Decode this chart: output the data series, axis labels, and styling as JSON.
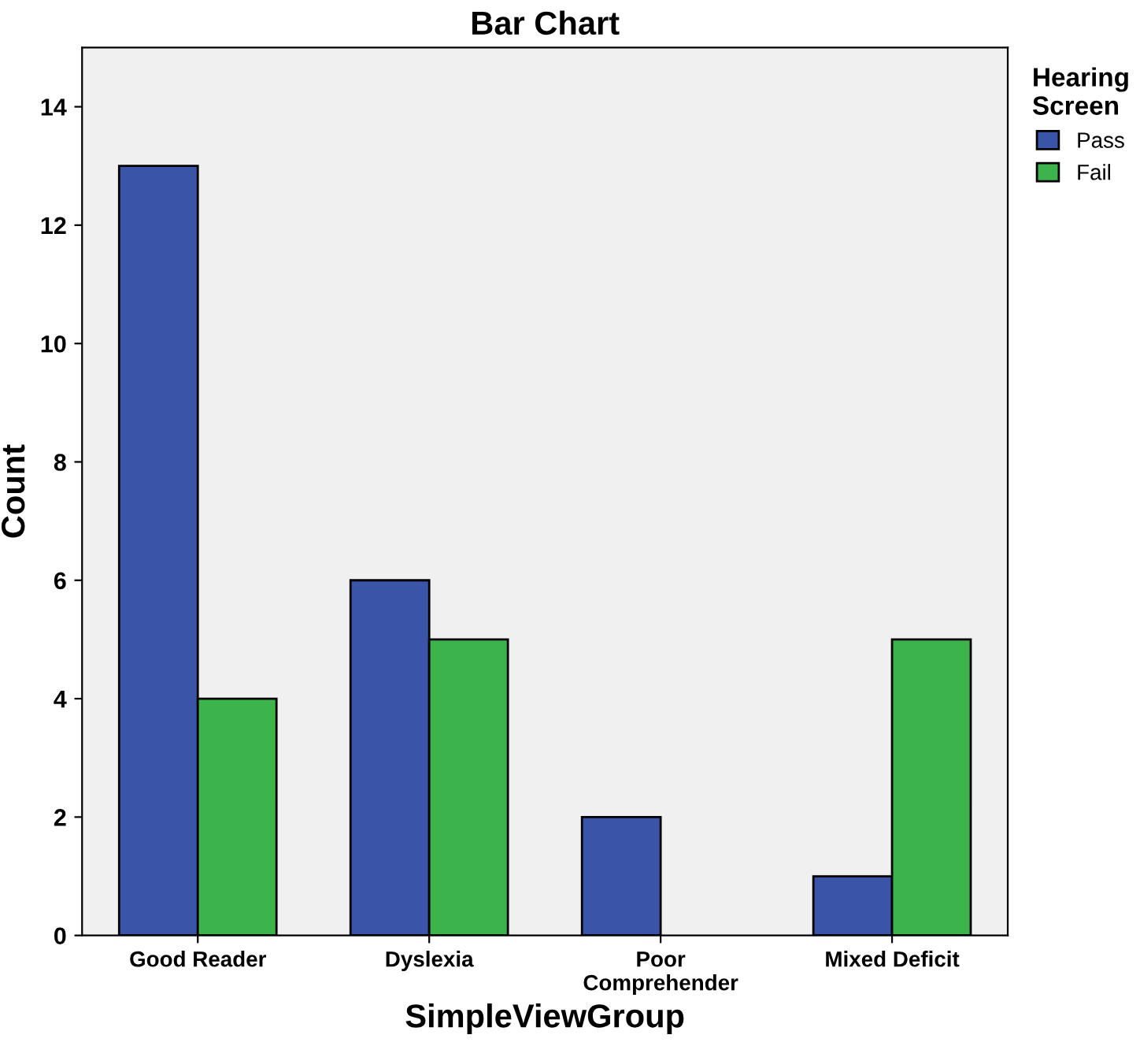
{
  "chart_data": {
    "type": "bar",
    "title": "Bar Chart",
    "xlabel": "SimpleViewGroup",
    "ylabel": "Count",
    "legend_title": "Hearing\nScreen",
    "categories": [
      "Good Reader",
      "Dyslexia",
      "Poor\nComprehender",
      "Mixed Deficit"
    ],
    "series": [
      {
        "name": "Pass",
        "color": "#3a55a8",
        "values": [
          13,
          6,
          2,
          1
        ]
      },
      {
        "name": "Fail",
        "color": "#3cb44b",
        "values": [
          4,
          5,
          null,
          5
        ]
      }
    ],
    "ylim": [
      0,
      15
    ],
    "yticks": [
      0,
      2,
      4,
      6,
      8,
      10,
      12,
      14
    ],
    "grid": false,
    "legend": "top right"
  }
}
